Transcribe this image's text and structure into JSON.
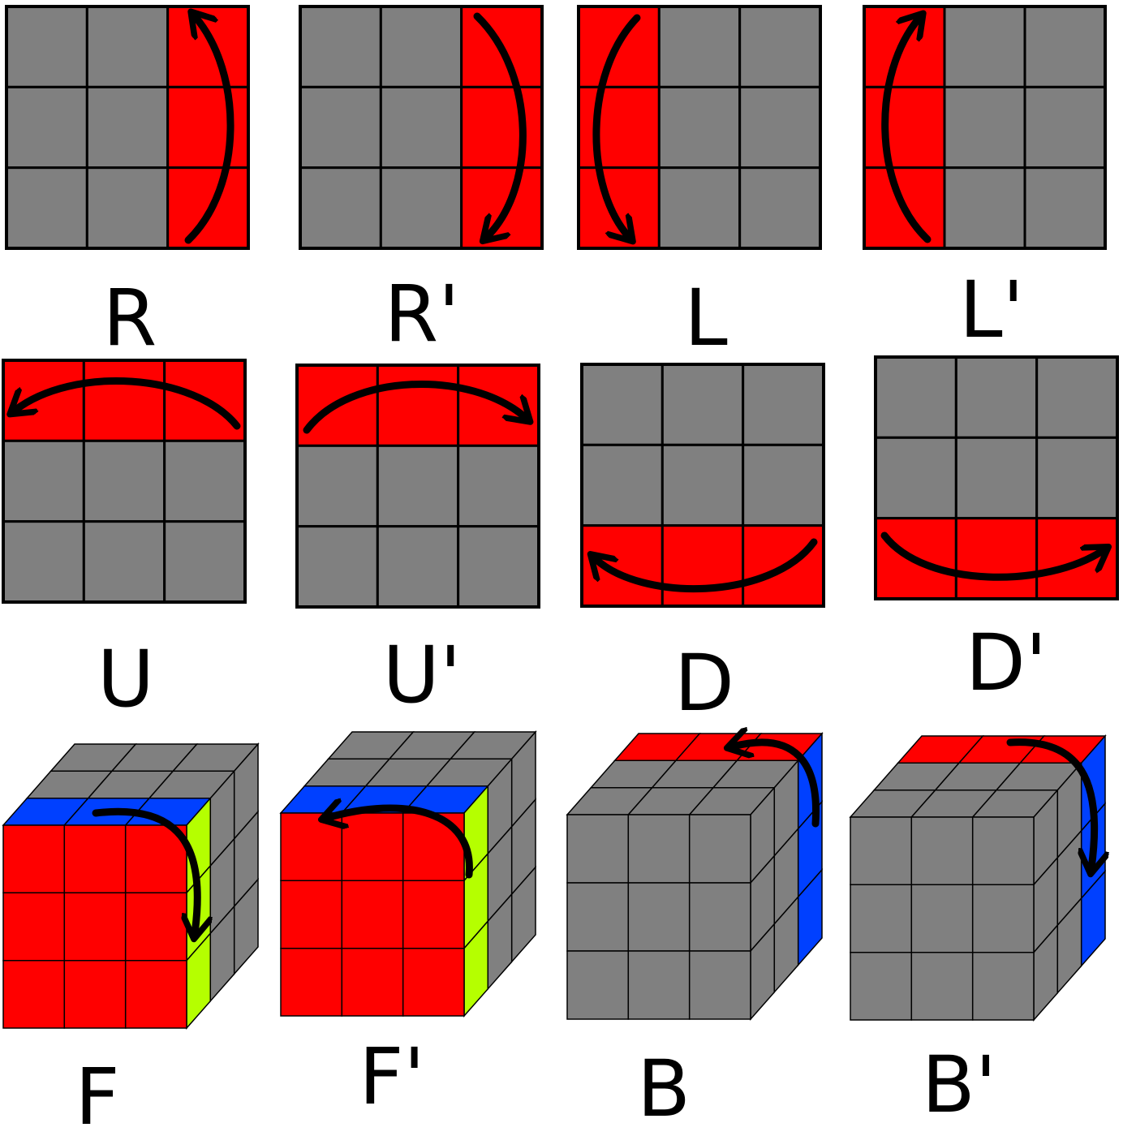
{
  "colors": {
    "background": "#ffffff",
    "sticker_gray": "#808080",
    "sticker_red": "#ff0000",
    "sticker_blue": "#0040ff",
    "sticker_yellow_green": "#b5ff00",
    "line": "#000000"
  },
  "moves": [
    {
      "label": "R",
      "view": "flat",
      "highlight": "right-column",
      "arrow": "up"
    },
    {
      "label": "R'",
      "view": "flat",
      "highlight": "right-column",
      "arrow": "down"
    },
    {
      "label": "L",
      "view": "flat",
      "highlight": "left-column",
      "arrow": "down"
    },
    {
      "label": "L'",
      "view": "flat",
      "highlight": "left-column",
      "arrow": "up"
    },
    {
      "label": "U",
      "view": "flat",
      "highlight": "top-row",
      "arrow": "left"
    },
    {
      "label": "U'",
      "view": "flat",
      "highlight": "top-row",
      "arrow": "right"
    },
    {
      "label": "D",
      "view": "flat",
      "highlight": "bottom-row",
      "arrow": "left"
    },
    {
      "label": "D'",
      "view": "flat",
      "highlight": "bottom-row",
      "arrow": "right"
    },
    {
      "label": "F",
      "view": "cube",
      "highlight": "front-face",
      "arrow": "clockwise"
    },
    {
      "label": "F'",
      "view": "cube",
      "highlight": "front-face",
      "arrow": "counterclockwise"
    },
    {
      "label": "B",
      "view": "cube",
      "highlight": "back-layer",
      "arrow": "counterclockwise"
    },
    {
      "label": "B'",
      "view": "cube",
      "highlight": "back-layer",
      "arrow": "clockwise"
    }
  ]
}
